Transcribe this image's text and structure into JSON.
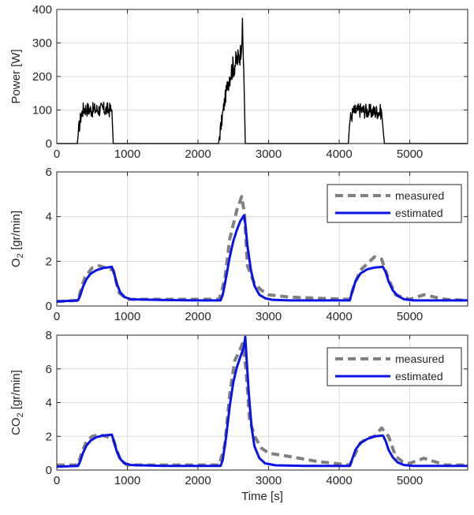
{
  "chart_data": [
    {
      "type": "line",
      "ylabel": "Power [W]",
      "xlabel": "",
      "xlim": [
        0,
        5820
      ],
      "ylim": [
        0,
        400
      ],
      "xticks": [
        0,
        1000,
        2000,
        3000,
        4000,
        5000
      ],
      "yticks": [
        0,
        100,
        200,
        300,
        400
      ],
      "grid": true,
      "legend": "none",
      "series": [
        {
          "color": "#000000",
          "x": [
            0,
            290,
            310,
            340,
            380,
            500,
            640,
            780,
            800,
            820,
            2290,
            2310,
            2380,
            2440,
            2500,
            2560,
            2600,
            2630,
            2650,
            2670,
            4130,
            4150,
            4200,
            4300,
            4450,
            4600,
            4640,
            4660,
            5820
          ],
          "values": [
            0,
            0,
            40,
            80,
            105,
            100,
            102,
            100,
            0,
            0,
            0,
            30,
            130,
            200,
            230,
            250,
            270,
            340,
            210,
            0,
            0,
            70,
            95,
            100,
            95,
            95,
            0,
            0,
            0
          ]
        }
      ]
    },
    {
      "type": "line",
      "ylabel": "O2 [gr/min]",
      "xlabel": "",
      "xlim": [
        0,
        5820
      ],
      "ylim": [
        0,
        6
      ],
      "xticks": [
        0,
        1000,
        2000,
        3000,
        4000,
        5000
      ],
      "yticks": [
        0,
        2,
        4,
        6
      ],
      "grid": true,
      "legend": "top-right",
      "series": [
        {
          "name": "measured",
          "color": "#808080",
          "style": "dashed",
          "x": [
            0,
            300,
            340,
            400,
            500,
            600,
            700,
            800,
            880,
            1000,
            1500,
            2000,
            2300,
            2380,
            2450,
            2550,
            2620,
            2660,
            2700,
            2800,
            2900,
            3000,
            3300,
            3700,
            4150,
            4220,
            4300,
            4400,
            4500,
            4600,
            4700,
            4800,
            4900,
            5000,
            5200,
            5500,
            5820
          ],
          "values": [
            0.2,
            0.25,
            0.7,
            1.3,
            1.7,
            1.8,
            1.7,
            1.6,
            0.6,
            0.3,
            0.3,
            0.3,
            0.3,
            1.2,
            3.0,
            4.3,
            4.9,
            4.1,
            1.8,
            1.0,
            0.7,
            0.5,
            0.4,
            0.35,
            0.3,
            1.0,
            1.6,
            1.9,
            2.2,
            2.1,
            1.2,
            0.5,
            0.4,
            0.3,
            0.5,
            0.3,
            0.25
          ]
        },
        {
          "name": "estimated",
          "color": "#0a14e6",
          "style": "solid",
          "x": [
            0,
            300,
            330,
            370,
            420,
            480,
            560,
            660,
            780,
            810,
            850,
            900,
            960,
            1050,
            1500,
            2000,
            2320,
            2350,
            2400,
            2450,
            2500,
            2550,
            2600,
            2650,
            2670,
            2700,
            2750,
            2800,
            2870,
            2950,
            3050,
            3300,
            4000,
            4150,
            4180,
            4230,
            4300,
            4400,
            4500,
            4620,
            4660,
            4700,
            4760,
            4830,
            4920,
            5050,
            5820
          ],
          "values": [
            0.2,
            0.25,
            0.45,
            0.85,
            1.2,
            1.45,
            1.6,
            1.7,
            1.75,
            1.5,
            1.0,
            0.6,
            0.4,
            0.3,
            0.27,
            0.25,
            0.25,
            0.5,
            1.3,
            2.2,
            2.9,
            3.4,
            3.8,
            4.05,
            3.7,
            2.7,
            1.6,
            0.9,
            0.5,
            0.35,
            0.28,
            0.25,
            0.25,
            0.25,
            0.6,
            1.1,
            1.45,
            1.65,
            1.72,
            1.75,
            1.5,
            1.1,
            0.7,
            0.45,
            0.3,
            0.25,
            0.25
          ]
        }
      ]
    },
    {
      "type": "line",
      "ylabel": "CO2 [gr/min]",
      "xlabel": "Time [s]",
      "xlim": [
        0,
        5820
      ],
      "ylim": [
        0,
        8
      ],
      "xticks": [
        0,
        1000,
        2000,
        3000,
        4000,
        5000
      ],
      "yticks": [
        0,
        2,
        4,
        6,
        8
      ],
      "grid": true,
      "legend": "top-right",
      "series": [
        {
          "name": "measured",
          "color": "#808080",
          "style": "dashed",
          "x": [
            0,
            300,
            350,
            420,
            500,
            600,
            700,
            800,
            900,
            1000,
            1500,
            2000,
            2300,
            2380,
            2450,
            2520,
            2580,
            2630,
            2680,
            2730,
            2800,
            2900,
            3000,
            3300,
            3700,
            4150,
            4230,
            4300,
            4400,
            4500,
            4600,
            4700,
            4800,
            4900,
            5000,
            5200,
            5500,
            5820
          ],
          "values": [
            0.3,
            0.3,
            1.0,
            1.7,
            2.0,
            2.1,
            2.0,
            1.8,
            0.6,
            0.3,
            0.3,
            0.3,
            0.3,
            1.5,
            4.5,
            6.5,
            7.0,
            7.5,
            6.0,
            3.0,
            2.0,
            1.3,
            1.0,
            0.8,
            0.5,
            0.3,
            1.0,
            1.6,
            1.9,
            2.0,
            2.5,
            2.0,
            0.8,
            0.5,
            0.4,
            0.7,
            0.3,
            0.3
          ]
        },
        {
          "name": "estimated",
          "color": "#0a14e6",
          "style": "solid",
          "x": [
            0,
            300,
            330,
            370,
            420,
            480,
            560,
            660,
            780,
            810,
            850,
            900,
            960,
            1050,
            1500,
            2000,
            2320,
            2350,
            2400,
            2450,
            2500,
            2550,
            2600,
            2650,
            2670,
            2690,
            2720,
            2760,
            2800,
            2870,
            2950,
            3100,
            3500,
            4150,
            4180,
            4230,
            4300,
            4400,
            4500,
            4620,
            4660,
            4700,
            4760,
            4830,
            4920,
            5050,
            5820
          ],
          "values": [
            0.2,
            0.25,
            0.5,
            1.0,
            1.45,
            1.75,
            1.95,
            2.05,
            2.1,
            1.7,
            1.1,
            0.65,
            0.4,
            0.3,
            0.25,
            0.25,
            0.25,
            0.6,
            2.0,
            3.8,
            5.2,
            6.1,
            6.7,
            7.3,
            7.9,
            6.5,
            4.5,
            2.5,
            1.4,
            0.7,
            0.4,
            0.28,
            0.25,
            0.25,
            0.6,
            1.2,
            1.6,
            1.85,
            2.0,
            2.05,
            1.7,
            1.2,
            0.75,
            0.45,
            0.3,
            0.25,
            0.25
          ]
        }
      ]
    }
  ]
}
